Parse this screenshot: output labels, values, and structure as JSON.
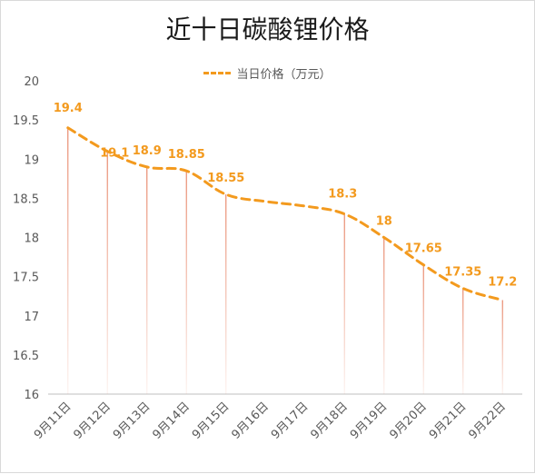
{
  "chart_data": {
    "type": "line",
    "title": "近十日碳酸锂价格",
    "categories": [
      "9月11日",
      "9月12日",
      "9月13日",
      "9月14日",
      "9月15日",
      "9月16日",
      "9月17日",
      "9月18日",
      "9月19日",
      "9月20日",
      "9月21日",
      "9月22日"
    ],
    "series": [
      {
        "name": "当日价格（万元）",
        "values": [
          19.4,
          19.1,
          18.9,
          18.85,
          18.55,
          18.46,
          18.4,
          18.3,
          18,
          17.65,
          17.35,
          17.2
        ],
        "data_labels": [
          "19.4",
          "19.1",
          "18.9",
          "18.85",
          "18.55",
          "",
          "",
          "18.3",
          "18",
          "17.65",
          "17.35",
          "17.2"
        ],
        "line_style": "dashed",
        "color": "#f39a1e"
      }
    ],
    "drop_lines_color": "#e8886b",
    "ylim": [
      16,
      20
    ],
    "yticks": [
      "16",
      "16.5",
      "17",
      "17.5",
      "18",
      "18.5",
      "19",
      "19.5",
      "20"
    ],
    "xlabel": "",
    "ylabel": "",
    "legend_position": "top-center",
    "grid": false
  }
}
